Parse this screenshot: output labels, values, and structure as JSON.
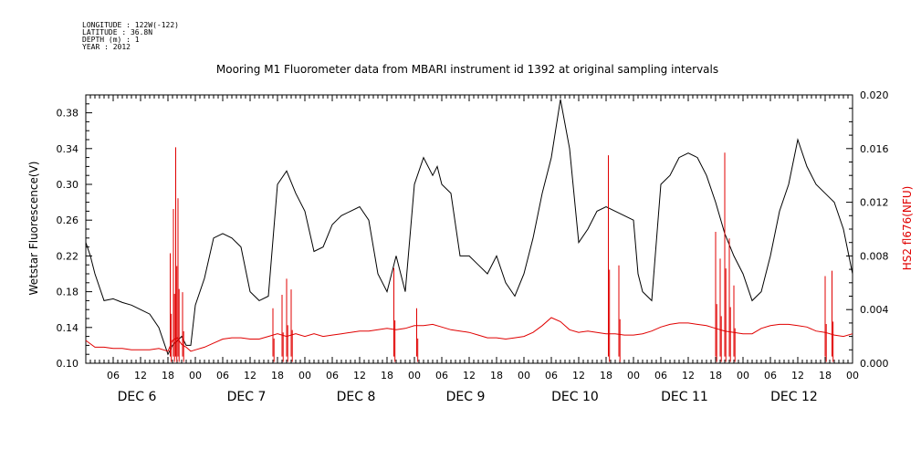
{
  "header": {
    "longitude": "LONGITUDE : 122W(-122)",
    "latitude": "LATITUDE : 36.8N",
    "depth": "DEPTH (m) : 1",
    "year": "YEAR : 2012"
  },
  "chart_data": {
    "type": "line",
    "title": "Mooring M1 Fluorometer data from MBARI instrument id 1392 at original sampling intervals",
    "ylabel_left": "Wetstar Fluorescence(V)",
    "ylabel_right": "HS2 fl676(NFU)",
    "y_left_ticks": [
      "0.10",
      "0.14",
      "0.18",
      "0.22",
      "0.26",
      "0.30",
      "0.34",
      "0.38"
    ],
    "y_right_ticks": [
      "0.000",
      "0.004",
      "0.008",
      "0.012",
      "0.016",
      "0.020"
    ],
    "ylim_left": [
      0.1,
      0.4
    ],
    "ylim_right": [
      0.0,
      0.02
    ],
    "x_hour_ticks": [
      "06",
      "12",
      "18",
      "00",
      "06",
      "12",
      "18",
      "00",
      "06",
      "12",
      "18",
      "00",
      "06",
      "12",
      "18",
      "00",
      "06",
      "12",
      "18",
      "00",
      "06",
      "12",
      "18",
      "00",
      "06",
      "12",
      "18",
      "00"
    ],
    "day_labels": [
      "DEC  6",
      "DEC  7",
      "DEC  8",
      "DEC  9",
      "DEC 10",
      "DEC 11",
      "DEC 12"
    ],
    "grid": false,
    "series": [
      {
        "name": "Wetstar Fluorescence(V)",
        "axis": "left",
        "color": "#000000",
        "t_hours": [
          0,
          1,
          2,
          4,
          6,
          8,
          10,
          12,
          14,
          16,
          18,
          19,
          20,
          21,
          22,
          23,
          24,
          26,
          28,
          30,
          32,
          34,
          36,
          38,
          40,
          42,
          44,
          46,
          48,
          50,
          52,
          54,
          55,
          56,
          58,
          60,
          62,
          64,
          66,
          68,
          70,
          72,
          74,
          76,
          77,
          78,
          80,
          82,
          84,
          86,
          88,
          90,
          92,
          94,
          96,
          98,
          100,
          102,
          104,
          106,
          108,
          110,
          112,
          114,
          116,
          118,
          120,
          121,
          122,
          124,
          126,
          128,
          130,
          132,
          134,
          136,
          138,
          140,
          142,
          144,
          146,
          148,
          150,
          152,
          154,
          156,
          158,
          160,
          162,
          164,
          166,
          168
        ],
        "values": [
          0.235,
          0.22,
          0.2,
          0.17,
          0.172,
          0.168,
          0.165,
          0.16,
          0.155,
          0.14,
          0.11,
          0.12,
          0.125,
          0.13,
          0.12,
          0.12,
          0.165,
          0.195,
          0.24,
          0.245,
          0.24,
          0.23,
          0.18,
          0.17,
          0.175,
          0.3,
          0.315,
          0.29,
          0.27,
          0.225,
          0.23,
          0.255,
          0.26,
          0.265,
          0.27,
          0.275,
          0.26,
          0.2,
          0.18,
          0.22,
          0.18,
          0.3,
          0.33,
          0.31,
          0.32,
          0.3,
          0.29,
          0.22,
          0.22,
          0.21,
          0.2,
          0.22,
          0.19,
          0.175,
          0.2,
          0.24,
          0.29,
          0.33,
          0.395,
          0.34,
          0.235,
          0.25,
          0.27,
          0.275,
          0.27,
          0.265,
          0.26,
          0.2,
          0.18,
          0.17,
          0.3,
          0.31,
          0.33,
          0.335,
          0.33,
          0.31,
          0.28,
          0.245,
          0.22,
          0.2,
          0.17,
          0.18,
          0.22,
          0.27,
          0.3,
          0.35,
          0.32,
          0.3,
          0.29,
          0.28,
          0.25,
          0.2
        ]
      },
      {
        "name": "HS2 fl676(NFU)",
        "axis": "right",
        "color": "#e00000",
        "t_hours": [
          0,
          2,
          4,
          6,
          8,
          10,
          12,
          14,
          16,
          18,
          19,
          20,
          21,
          22,
          23,
          24,
          26,
          28,
          30,
          32,
          34,
          36,
          38,
          40,
          42,
          44,
          46,
          48,
          50,
          52,
          54,
          56,
          58,
          60,
          62,
          64,
          66,
          68,
          70,
          72,
          74,
          76,
          78,
          80,
          82,
          84,
          86,
          88,
          90,
          92,
          94,
          96,
          98,
          100,
          102,
          104,
          106,
          108,
          110,
          112,
          114,
          116,
          118,
          120,
          122,
          124,
          126,
          128,
          130,
          132,
          134,
          136,
          138,
          140,
          142,
          144,
          146,
          148,
          150,
          152,
          154,
          156,
          158,
          160,
          162,
          164,
          166,
          168
        ],
        "values": [
          0.0017,
          0.0012,
          0.0012,
          0.0011,
          0.0011,
          0.001,
          0.001,
          0.001,
          0.0011,
          0.0009,
          0.0017,
          0.0019,
          0.0014,
          0.0012,
          0.0009,
          0.001,
          0.0012,
          0.0015,
          0.0018,
          0.0019,
          0.0019,
          0.0018,
          0.0018,
          0.002,
          0.0022,
          0.002,
          0.0022,
          0.002,
          0.0022,
          0.002,
          0.0021,
          0.0022,
          0.0023,
          0.0024,
          0.0024,
          0.0025,
          0.0026,
          0.0025,
          0.0026,
          0.0028,
          0.0028,
          0.0029,
          0.0027,
          0.0025,
          0.0024,
          0.0023,
          0.0021,
          0.0019,
          0.0019,
          0.0018,
          0.0019,
          0.002,
          0.0023,
          0.0028,
          0.0034,
          0.0031,
          0.0025,
          0.0023,
          0.0024,
          0.0023,
          0.0022,
          0.0022,
          0.0021,
          0.0021,
          0.0022,
          0.0024,
          0.0027,
          0.0029,
          0.003,
          0.003,
          0.0029,
          0.0028,
          0.0026,
          0.0024,
          0.0023,
          0.0022,
          0.0022,
          0.0026,
          0.0028,
          0.0029,
          0.0029,
          0.0028,
          0.0027,
          0.0024,
          0.0023,
          0.0021,
          0.002,
          0.0022
        ]
      }
    ],
    "spikes": {
      "note_hours_and_peaks": "red series spikes (hour, peak NFU)",
      "list": [
        [
          18.5,
          0.0082
        ],
        [
          19.2,
          0.0115
        ],
        [
          19.7,
          0.0161
        ],
        [
          20.2,
          0.0123
        ],
        [
          21.2,
          0.0053
        ],
        [
          41.0,
          0.0041
        ],
        [
          43.0,
          0.0051
        ],
        [
          44.0,
          0.0063
        ],
        [
          45.0,
          0.0055
        ],
        [
          67.5,
          0.0071
        ],
        [
          72.5,
          0.0041
        ],
        [
          114.5,
          0.0155
        ],
        [
          116.8,
          0.0073
        ],
        [
          138.0,
          0.0098
        ],
        [
          139.0,
          0.0078
        ],
        [
          140.0,
          0.0157
        ],
        [
          141.0,
          0.0093
        ],
        [
          142.0,
          0.0058
        ],
        [
          162.0,
          0.0065
        ],
        [
          163.5,
          0.0069
        ]
      ]
    }
  }
}
